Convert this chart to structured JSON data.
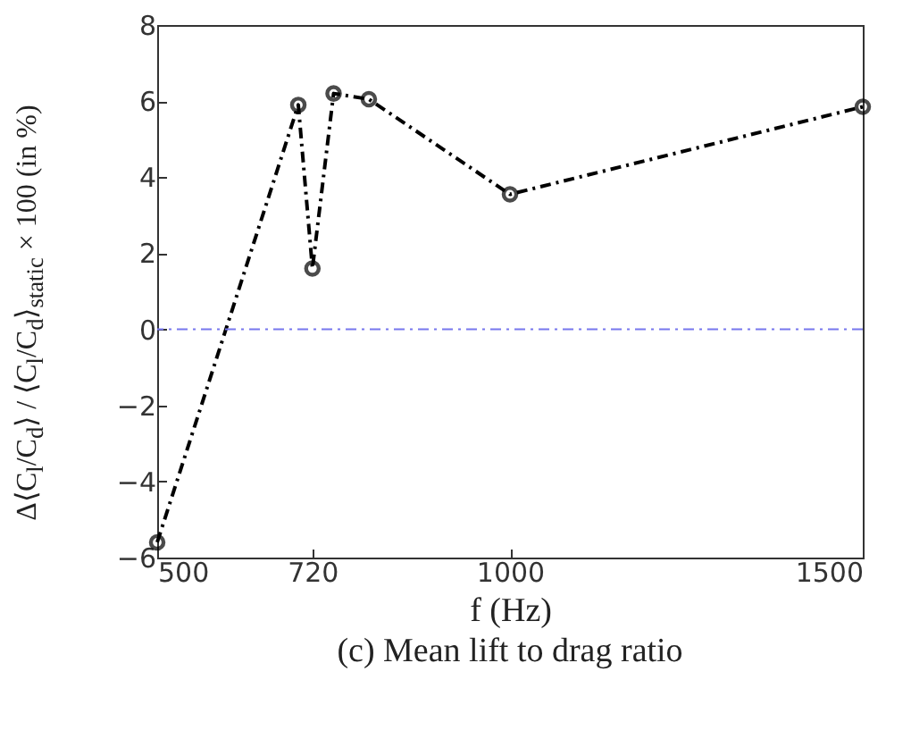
{
  "chart_data": {
    "type": "line",
    "title": "(c) Mean lift to drag ratio",
    "xlabel": "f (Hz)",
    "ylabel": "Δ⟨C$_{l}$/C$_{d}$⟩ / ⟨C$_{l}$/C$_{d}$⟩$_{static}$ × 100 (in %)",
    "x": [
      500,
      700,
      720,
      750,
      800,
      1000,
      1500
    ],
    "series": [
      {
        "color": "#000000",
        "values": [
          -5.6,
          5.9,
          1.6,
          6.2,
          6.05,
          3.55,
          5.85
        ]
      }
    ],
    "xlim": [
      500,
      1500
    ],
    "xticks": [
      500,
      720,
      {
        "value": 1000,
        "label": "1000"
      },
      {
        "value": 1500,
        "label": "1500"
      }
    ],
    "ylim": [
      -6,
      8
    ],
    "yticks": [
      -6,
      -4,
      -2,
      0,
      2,
      4,
      6,
      8
    ],
    "ref_lines": [
      {
        "axis": "y",
        "value": 0,
        "color": "#7777ee",
        "line_style": "dashed"
      }
    ],
    "marker": "circle",
    "line_style": "dashed",
    "grid": false
  }
}
